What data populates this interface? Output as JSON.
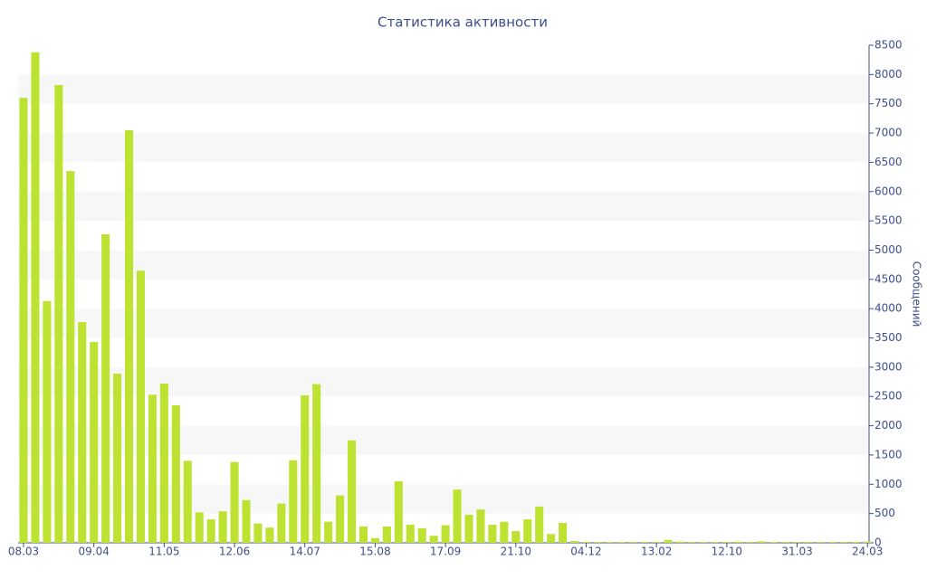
{
  "chart_data": {
    "type": "bar",
    "title": "Статистика активности",
    "y_axis_label": "Сообщений",
    "categories": [
      "08.03",
      null,
      null,
      null,
      null,
      null,
      "09.04",
      null,
      null,
      null,
      null,
      null,
      "11.05",
      null,
      null,
      null,
      null,
      null,
      "12.06",
      null,
      null,
      null,
      null,
      null,
      "14.07",
      null,
      null,
      null,
      null,
      null,
      "15.08",
      null,
      null,
      null,
      null,
      null,
      "17.09",
      null,
      null,
      null,
      null,
      null,
      "21.10",
      null,
      null,
      null,
      null,
      null,
      "04.12",
      null,
      null,
      null,
      null,
      null,
      "13.02",
      null,
      null,
      null,
      null,
      null,
      "12.10",
      null,
      null,
      null,
      null,
      null,
      "31.03",
      null,
      null,
      null,
      null,
      null,
      "24.03"
    ],
    "values": [
      7600,
      8380,
      4130,
      7820,
      6350,
      3770,
      3430,
      5270,
      2890,
      7050,
      4650,
      2530,
      2720,
      2350,
      1400,
      520,
      400,
      540,
      1380,
      730,
      330,
      260,
      670,
      1410,
      2520,
      2710,
      360,
      810,
      1750,
      280,
      80,
      280,
      1050,
      310,
      250,
      120,
      300,
      910,
      480,
      570,
      310,
      360,
      200,
      400,
      620,
      150,
      340,
      30,
      15,
      15,
      15,
      15,
      15,
      15,
      15,
      50,
      20,
      15,
      15,
      15,
      15,
      20,
      15,
      25,
      15,
      15,
      15,
      15,
      15,
      15,
      15,
      15,
      20
    ],
    "color": "#bde232",
    "ylim": [
      0,
      8500
    ],
    "yticks": [
      0,
      500,
      1000,
      1500,
      2000,
      2500,
      3000,
      3500,
      4000,
      4500,
      5000,
      5500,
      6000,
      6500,
      7000,
      7500,
      8000,
      8500
    ],
    "grid": true
  }
}
